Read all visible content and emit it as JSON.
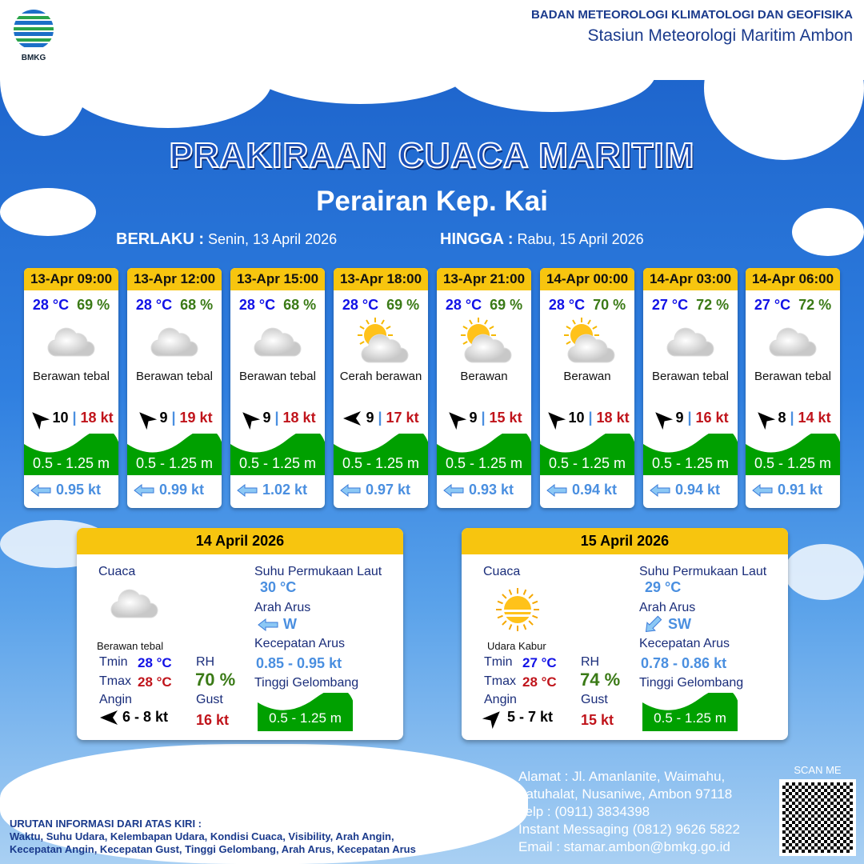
{
  "header": {
    "logo_text": "BMKG",
    "org": "BADAN METEOROLOGI KLIMATOLOGI DAN GEOFISIKA",
    "station": "Stasiun Meteorologi Maritim Ambon"
  },
  "title": "PRAKIRAAN CUACA MARITIM",
  "subtitle": "Perairan Kep. Kai",
  "valid": {
    "from_label": "BERLAKU :",
    "from": "Senin, 13 April 2026",
    "to_label": "HINGGA :",
    "to": "Rabu, 15 April 2026"
  },
  "colors": {
    "header": "#f7c50f",
    "temp": "#1212e6",
    "rh": "#3a7a16",
    "gust": "#c0141b",
    "current": "#4a8fe0",
    "wave": "#00a000"
  },
  "cards": [
    {
      "time": "13-Apr 09:00",
      "temp": "28 °C",
      "rh": "69 %",
      "icon": "cloud-icon",
      "cond": "Berawan tebal",
      "wind_dir": "NW",
      "wind": "10",
      "gust": "18 kt",
      "wave": "0.5 - 1.25 m",
      "current": "0.95 kt"
    },
    {
      "time": "13-Apr 12:00",
      "temp": "28 °C",
      "rh": "68 %",
      "icon": "cloud-icon",
      "cond": "Berawan tebal",
      "wind_dir": "NW",
      "wind": "9",
      "gust": "19 kt",
      "wave": "0.5 - 1.25 m",
      "current": "0.99 kt"
    },
    {
      "time": "13-Apr 15:00",
      "temp": "28 °C",
      "rh": "68 %",
      "icon": "cloud-icon",
      "cond": "Berawan tebal",
      "wind_dir": "NW",
      "wind": "9",
      "gust": "18 kt",
      "wave": "0.5 - 1.25 m",
      "current": "1.02 kt"
    },
    {
      "time": "13-Apr 18:00",
      "temp": "28 °C",
      "rh": "69 %",
      "icon": "sun-cloud-icon",
      "cond": "Cerah berawan",
      "wind_dir": "W",
      "wind": "9",
      "gust": "17 kt",
      "wave": "0.5 - 1.25 m",
      "current": "0.97 kt"
    },
    {
      "time": "13-Apr 21:00",
      "temp": "28 °C",
      "rh": "69 %",
      "icon": "sun-cloud-icon",
      "cond": "Berawan",
      "wind_dir": "NW",
      "wind": "9",
      "gust": "15 kt",
      "wave": "0.5 - 1.25 m",
      "current": "0.93 kt"
    },
    {
      "time": "14-Apr 00:00",
      "temp": "28 °C",
      "rh": "70 %",
      "icon": "sun-cloud-icon",
      "cond": "Berawan",
      "wind_dir": "NW",
      "wind": "10",
      "gust": "18 kt",
      "wave": "0.5 - 1.25 m",
      "current": "0.94 kt"
    },
    {
      "time": "14-Apr 03:00",
      "temp": "27 °C",
      "rh": "72 %",
      "icon": "cloud-icon",
      "cond": "Berawan tebal",
      "wind_dir": "NW",
      "wind": "9",
      "gust": "16 kt",
      "wave": "0.5 - 1.25 m",
      "current": "0.94 kt"
    },
    {
      "time": "14-Apr 06:00",
      "temp": "27 °C",
      "rh": "72 %",
      "icon": "cloud-icon",
      "cond": "Berawan tebal",
      "wind_dir": "NW",
      "wind": "8",
      "gust": "14 kt",
      "wave": "0.5 - 1.25 m",
      "current": "0.91 kt"
    }
  ],
  "labels": {
    "cuaca": "Cuaca",
    "sst": "Suhu Permukaan Laut",
    "arah": "Arah Arus",
    "kec": "Kecepatan Arus",
    "tinggi": "Tinggi Gelombang",
    "tmin": "Tmin",
    "tmax": "Tmax",
    "rh": "RH",
    "angin": "Angin",
    "gust": "Gust"
  },
  "summaries": [
    {
      "date": "14 April 2026",
      "icon": "cloud-icon",
      "cond": "Berawan tebal",
      "tmin": "28 °C",
      "tmax": "28 °C",
      "rh": "70 %",
      "wind_dir": "W",
      "wind": "6  - 8 kt",
      "gust": "16 kt",
      "sst": "30 °C",
      "cur_dir": "W",
      "cur_speed": "0.85  - 0.95 kt",
      "wave": "0.5 - 1.25 m"
    },
    {
      "date": "15 April 2026",
      "icon": "haze-icon",
      "cond": "Udara Kabur",
      "tmin": "27 °C",
      "tmax": "28 °C",
      "rh": "74 %",
      "wind_dir": "NE",
      "wind": "5  - 7 kt",
      "gust": "15 kt",
      "sst": "29 °C",
      "cur_dir": "SW",
      "cur_speed": "0.78  - 0.86 kt",
      "wave": "0.5 - 1.25 m"
    }
  ],
  "contact": {
    "l1": "Alamat : Jl. Amanlanite, Waimahu,",
    "l2": "Latuhalat, Nusaniwe, Ambon 97118",
    "l3": "Telp      : (0911) 3834398",
    "l4": "Instant Messaging (0812) 9626 5822",
    "l5": "Email      : stamar.ambon@bmkg.go.id"
  },
  "scan": "SCAN ME",
  "urutan": {
    "title": "URUTAN INFORMASI DARI ATAS KIRI :",
    "l1": "Waktu, Suhu Udara, Kelembapan Udara, Kondisi Cuaca, Visibility, Arah Angin,",
    "l2": "Kecepatan Angin, Kecepatan Gust, Tinggi Gelombang, Arah Arus, Kecepatan Arus"
  }
}
